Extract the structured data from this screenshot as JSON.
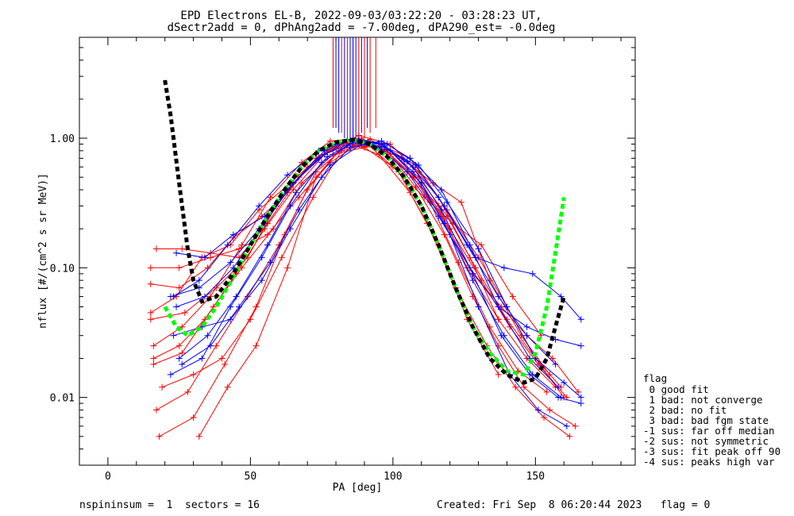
{
  "chart_data": {
    "type": "line",
    "title": "EPD Electrons EL-B, 2022-09-03/03:22:20 - 03:28:23 UT,",
    "subtitle": "dSectr2add = 0, dPhAng2add = -7.00deg, dPA290_est=  -0.0deg",
    "xlabel": "PA [deg]",
    "ylabel": "nflux [#/(cm^2 s sr MeV)]",
    "xlim": [
      -10,
      185
    ],
    "ylim": [
      0.003,
      6.0
    ],
    "yscale": "log",
    "xticks": [
      0,
      50,
      100,
      150
    ],
    "yticks": [
      0.01,
      0.1,
      1.0
    ],
    "ytick_labels": [
      "0.01",
      "0.10",
      "1.00"
    ],
    "colors": {
      "red": "#ff0000",
      "blue": "#0000ff",
      "green": "#00ff00",
      "black": "#000000"
    },
    "series": [
      {
        "color": "red",
        "x": [
          15,
          24,
          33,
          43,
          53,
          64,
          74,
          86,
          97,
          107,
          117,
          128,
          138,
          147,
          156,
          165
        ],
        "y": [
          0.045,
          0.06,
          0.12,
          0.15,
          0.28,
          0.45,
          0.72,
          1.0,
          0.82,
          0.5,
          0.25,
          0.09,
          0.05,
          0.03,
          0.02,
          0.011
        ]
      },
      {
        "color": "red",
        "x": [
          16,
          25,
          34,
          45,
          55,
          65,
          76,
          87,
          98,
          108,
          118,
          128,
          137,
          146,
          155,
          164
        ],
        "y": [
          0.02,
          0.025,
          0.04,
          0.09,
          0.2,
          0.4,
          0.75,
          0.95,
          0.8,
          0.42,
          0.18,
          0.06,
          0.025,
          0.012,
          0.008,
          0.006
        ]
      },
      {
        "color": "red",
        "x": [
          17,
          26,
          36,
          46,
          56,
          67,
          77,
          88,
          99,
          109,
          119,
          130,
          140,
          150,
          159
        ],
        "y": [
          0.14,
          0.14,
          0.13,
          0.12,
          0.22,
          0.5,
          0.8,
          1.05,
          0.9,
          0.55,
          0.28,
          0.12,
          0.05,
          0.02,
          0.012
        ]
      },
      {
        "color": "red",
        "x": [
          15,
          25,
          35,
          44,
          54,
          63,
          73,
          84,
          95,
          106,
          116,
          126,
          137
        ],
        "y": [
          0.075,
          0.07,
          0.1,
          0.17,
          0.25,
          0.38,
          0.7,
          0.92,
          0.75,
          0.38,
          0.15,
          0.04,
          0.015
        ]
      },
      {
        "color": "red",
        "x": [
          17,
          28,
          38,
          49,
          60,
          70,
          81,
          92,
          103,
          113,
          123,
          134,
          144,
          154
        ],
        "y": [
          0.008,
          0.011,
          0.025,
          0.06,
          0.15,
          0.4,
          0.8,
          0.98,
          0.7,
          0.32,
          0.11,
          0.035,
          0.016,
          0.011
        ]
      },
      {
        "color": "red",
        "x": [
          18,
          30,
          41,
          52,
          62,
          73,
          84,
          95,
          105,
          116,
          126,
          137,
          147,
          157
        ],
        "y": [
          0.005,
          0.007,
          0.018,
          0.05,
          0.18,
          0.55,
          0.88,
          0.85,
          0.55,
          0.3,
          0.1,
          0.04,
          0.02,
          0.012
        ]
      },
      {
        "color": "red",
        "x": [
          15,
          27,
          38,
          49,
          59,
          70,
          80,
          91,
          102,
          112,
          122,
          133,
          143,
          153,
          162
        ],
        "y": [
          0.04,
          0.045,
          0.07,
          0.12,
          0.3,
          0.6,
          0.9,
          0.9,
          0.55,
          0.22,
          0.07,
          0.025,
          0.012,
          0.007,
          0.005
        ]
      },
      {
        "color": "red",
        "x": [
          16,
          26,
          36,
          47,
          57,
          68,
          78,
          89,
          99,
          110,
          120,
          131,
          141,
          151,
          161
        ],
        "y": [
          0.025,
          0.035,
          0.06,
          0.15,
          0.35,
          0.65,
          0.95,
          1.0,
          0.75,
          0.45,
          0.2,
          0.08,
          0.035,
          0.018,
          0.01
        ]
      },
      {
        "color": "red",
        "x": [
          19,
          30,
          40,
          50,
          61,
          72,
          82,
          92,
          103,
          114,
          124,
          134,
          145,
          155
        ],
        "y": [
          0.012,
          0.015,
          0.02,
          0.04,
          0.12,
          0.35,
          0.8,
          0.9,
          0.7,
          0.45,
          0.32,
          0.08,
          0.03,
          0.015
        ]
      },
      {
        "color": "red",
        "x": [
          16,
          26,
          37,
          47,
          58,
          68,
          79,
          90,
          100,
          111,
          121,
          131,
          142,
          152
        ],
        "y": [
          0.018,
          0.022,
          0.05,
          0.1,
          0.2,
          0.45,
          0.75,
          0.85,
          0.6,
          0.35,
          0.22,
          0.15,
          0.06,
          0.03
        ]
      },
      {
        "color": "red",
        "x": [
          32,
          42,
          52,
          63,
          73,
          84,
          95,
          106,
          116,
          127,
          137
        ],
        "y": [
          0.005,
          0.012,
          0.025,
          0.1,
          0.5,
          0.95,
          0.9,
          0.7,
          0.35,
          0.12,
          0.04
        ]
      },
      {
        "color": "red",
        "x": [
          15,
          25,
          36,
          46,
          56,
          67,
          78,
          88,
          99,
          109,
          119,
          129,
          140,
          150,
          160
        ],
        "y": [
          0.1,
          0.1,
          0.12,
          0.14,
          0.18,
          0.35,
          0.65,
          0.9,
          0.8,
          0.5,
          0.25,
          0.1,
          0.04,
          0.02,
          0.01
        ]
      },
      {
        "color": "blue",
        "x": [
          23,
          32,
          42,
          53,
          63,
          74,
          85,
          95,
          105,
          116,
          127,
          137,
          147,
          157,
          166
        ],
        "y": [
          0.06,
          0.08,
          0.15,
          0.3,
          0.52,
          0.8,
          0.98,
          0.85,
          0.55,
          0.25,
          0.1,
          0.05,
          0.035,
          0.028,
          0.025
        ]
      },
      {
        "color": "blue",
        "x": [
          22,
          33,
          43,
          54,
          64,
          75,
          86,
          96,
          107,
          117,
          128,
          138,
          148,
          158,
          166
        ],
        "y": [
          0.015,
          0.02,
          0.05,
          0.12,
          0.3,
          0.65,
          0.92,
          0.9,
          0.6,
          0.28,
          0.09,
          0.03,
          0.015,
          0.01,
          0.009
        ]
      },
      {
        "color": "blue",
        "x": [
          24,
          34,
          44,
          55,
          65,
          76,
          87,
          97,
          108,
          118,
          129,
          139,
          149,
          159,
          166
        ],
        "y": [
          0.13,
          0.12,
          0.18,
          0.25,
          0.45,
          0.75,
          0.95,
          0.85,
          0.62,
          0.3,
          0.12,
          0.1,
          0.09,
          0.06,
          0.04
        ]
      },
      {
        "color": "blue",
        "x": [
          23,
          33,
          43,
          54,
          64,
          75,
          85,
          96,
          106,
          117,
          127,
          137,
          148,
          158
        ],
        "y": [
          0.03,
          0.035,
          0.04,
          0.08,
          0.2,
          0.5,
          0.85,
          0.95,
          0.7,
          0.4,
          0.15,
          0.05,
          0.02,
          0.012
        ]
      },
      {
        "color": "blue",
        "x": [
          25,
          35,
          45,
          56,
          66,
          77,
          88,
          98,
          109,
          119,
          130,
          140,
          150,
          160,
          166
        ],
        "y": [
          0.02,
          0.03,
          0.06,
          0.15,
          0.38,
          0.72,
          0.98,
          0.9,
          0.62,
          0.32,
          0.14,
          0.05,
          0.02,
          0.013,
          0.01
        ]
      },
      {
        "color": "blue",
        "x": [
          24,
          34,
          44,
          55,
          65,
          76,
          86,
          97,
          107,
          118,
          128,
          139,
          149,
          159
        ],
        "y": [
          0.05,
          0.06,
          0.1,
          0.22,
          0.45,
          0.8,
          1.0,
          0.88,
          0.55,
          0.22,
          0.08,
          0.03,
          0.015,
          0.01
        ]
      },
      {
        "color": "blue",
        "x": [
          26,
          36,
          46,
          57,
          67,
          78,
          89,
          99,
          110,
          120,
          130,
          141,
          151,
          161
        ],
        "y": [
          0.018,
          0.025,
          0.05,
          0.11,
          0.28,
          0.62,
          0.9,
          0.8,
          0.45,
          0.18,
          0.05,
          0.015,
          0.008,
          0.006
        ]
      },
      {
        "color": "blue",
        "x": [
          22,
          32,
          43,
          53,
          63,
          74,
          84,
          95,
          105,
          116,
          126,
          137,
          147,
          157
        ],
        "y": [
          0.06,
          0.07,
          0.11,
          0.2,
          0.4,
          0.7,
          0.95,
          0.92,
          0.66,
          0.35,
          0.15,
          0.06,
          0.03,
          0.018
        ]
      }
    ],
    "spikes": {
      "red_x": [
        79,
        82,
        84,
        86,
        88,
        90,
        92,
        94
      ],
      "blue_x": [
        80,
        81,
        83,
        85,
        86,
        87,
        89,
        91
      ],
      "y_base": [
        1.2,
        1.1,
        1.0,
        0.95,
        0.92,
        1.0,
        1.1,
        1.2
      ]
    },
    "fit_green": {
      "x": [
        20,
        24,
        28,
        33,
        38,
        44,
        50,
        56,
        62,
        68,
        74,
        80,
        86,
        92,
        98,
        104,
        110,
        116,
        122,
        128,
        134,
        140,
        146,
        150,
        154,
        157,
        160
      ],
      "y": [
        0.05,
        0.035,
        0.03,
        0.035,
        0.05,
        0.085,
        0.15,
        0.25,
        0.4,
        0.6,
        0.8,
        0.93,
        0.97,
        0.9,
        0.72,
        0.5,
        0.3,
        0.15,
        0.07,
        0.035,
        0.022,
        0.016,
        0.015,
        0.022,
        0.05,
        0.13,
        0.35
      ]
    },
    "fit_black": {
      "x": [
        20,
        22,
        25,
        28,
        30,
        33,
        38,
        44,
        50,
        56,
        62,
        68,
        74,
        80,
        86,
        92,
        98,
        104,
        110,
        116,
        122,
        128,
        134,
        140,
        146,
        150,
        154,
        157,
        160
      ],
      "y": [
        2.8,
        1.5,
        0.45,
        0.14,
        0.08,
        0.055,
        0.06,
        0.09,
        0.15,
        0.25,
        0.4,
        0.6,
        0.8,
        0.93,
        0.97,
        0.9,
        0.72,
        0.5,
        0.3,
        0.15,
        0.07,
        0.035,
        0.02,
        0.015,
        0.013,
        0.014,
        0.02,
        0.035,
        0.06
      ]
    }
  },
  "legend": {
    "title": "flag",
    "items": [
      " 0 good fit",
      " 1 bad: not converge",
      " 2 bad: no fit",
      " 3 bad: bad fgm state",
      "-1 sus: far off median",
      "-2 sus: not symmetric",
      "-3 sus: fit peak off 90",
      "-4 sus: peaks high var"
    ]
  },
  "footer": {
    "left": "nspininsum =  1  sectors = 16",
    "right": "Created: Fri Sep  8 06:20:44 2023   flag = 0"
  }
}
